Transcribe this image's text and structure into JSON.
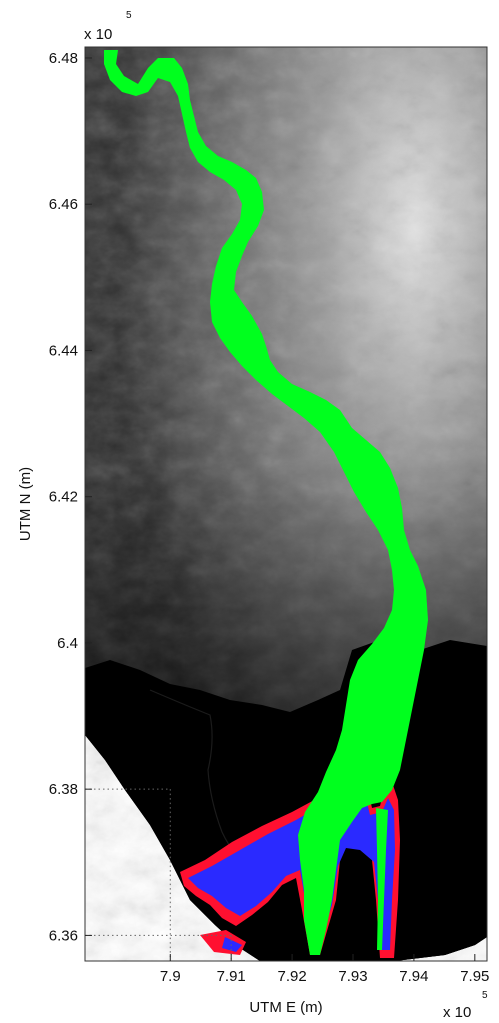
{
  "chart_data": {
    "type": "map",
    "xlabel": "UTM E (m)",
    "ylabel": "UTM N (m)",
    "x_multiplier": {
      "base": "x 10",
      "exponent": "5"
    },
    "y_multiplier": {
      "base": "x 10",
      "exponent": "5"
    },
    "xlim": [
      7.886,
      7.952
    ],
    "ylim": [
      6.3565,
      6.4815
    ],
    "x_ticks": [
      {
        "value": 7.9,
        "label": "7.9"
      },
      {
        "value": 7.91,
        "label": "7.91"
      },
      {
        "value": 7.92,
        "label": "7.92"
      },
      {
        "value": 7.93,
        "label": "7.93"
      },
      {
        "value": 7.94,
        "label": "7.94"
      },
      {
        "value": 7.95,
        "label": "7.95"
      }
    ],
    "y_ticks": [
      {
        "value": 6.36,
        "label": "6.36"
      },
      {
        "value": 6.38,
        "label": "6.38"
      },
      {
        "value": 6.4,
        "label": "6.4"
      },
      {
        "value": 6.42,
        "label": "6.42"
      },
      {
        "value": 6.44,
        "label": "6.44"
      },
      {
        "value": 6.46,
        "label": "6.46"
      },
      {
        "value": 6.48,
        "label": "6.48"
      }
    ],
    "guide_lines": [
      {
        "x": 7.9,
        "y": 6.38
      },
      {
        "x": 7.91,
        "y": 6.36
      }
    ],
    "colors": {
      "terrain_high": "#e6e6e6",
      "terrain_low": "#000000",
      "flood_primary": "#00ff1e",
      "flood_secondary": "#2a2aff",
      "flood_tertiary": "#ff1030",
      "no_data": "#ffffff"
    }
  }
}
